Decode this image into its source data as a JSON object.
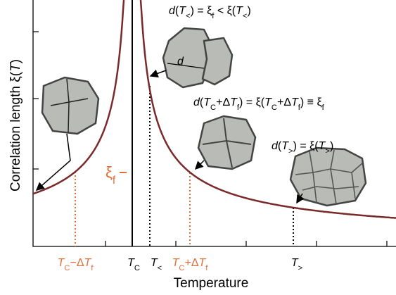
{
  "y_label": [
    {
      "t": "Correlation length  ξ("
    },
    {
      "i": "T"
    },
    {
      "t": ")"
    }
  ],
  "x_label": [
    {
      "t": "Temperature"
    }
  ],
  "ticks": [
    [
      {
        "i": "T"
      },
      {
        "s": "C"
      },
      {
        "t": "−Δ"
      },
      {
        "i": "T"
      },
      {
        "s": "f"
      }
    ],
    [
      {
        "i": "T"
      },
      {
        "s": "C"
      }
    ],
    [
      {
        "i": "T"
      },
      {
        "s": "<"
      }
    ],
    [
      {
        "i": "T"
      },
      {
        "s": "C"
      },
      {
        "t": "+Δ"
      },
      {
        "i": "T"
      },
      {
        "s": "f"
      }
    ],
    [
      {
        "i": "T"
      },
      {
        "s": ">"
      }
    ]
  ],
  "xi_f": [
    {
      "t": "ξ"
    },
    {
      "s": "f"
    }
  ],
  "grain_d": [
    {
      "i": "d"
    }
  ],
  "annotations": [
    [
      {
        "i": "d"
      },
      {
        "t": "("
      },
      {
        "i": "T"
      },
      {
        "s": "<"
      },
      {
        "t": ") = ξ"
      },
      {
        "s": "f"
      },
      {
        "t": " < ξ("
      },
      {
        "i": "T"
      },
      {
        "s": "<"
      },
      {
        "t": ")"
      }
    ],
    [
      {
        "i": "d"
      },
      {
        "t": "("
      },
      {
        "i": "T"
      },
      {
        "s": "C"
      },
      {
        "t": "+Δ"
      },
      {
        "i": "T"
      },
      {
        "s": "f"
      },
      {
        "t": ") = ξ("
      },
      {
        "i": "T"
      },
      {
        "s": "C"
      },
      {
        "t": "+Δ"
      },
      {
        "i": "T"
      },
      {
        "s": "f"
      },
      {
        "t": ") ≡ ξ"
      },
      {
        "s": "f"
      }
    ],
    [
      {
        "i": "d"
      },
      {
        "t": "("
      },
      {
        "i": "T"
      },
      {
        "s": ">"
      },
      {
        "t": ") = ξ("
      },
      {
        "i": "T"
      },
      {
        "s": ">"
      },
      {
        "t": ")"
      }
    ]
  ]
}
